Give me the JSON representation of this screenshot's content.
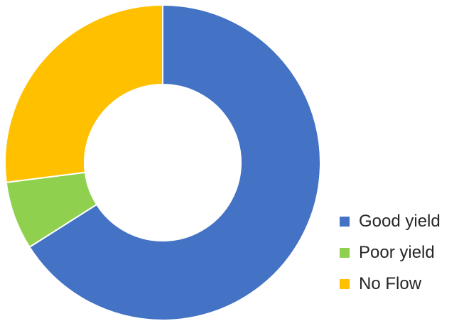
{
  "chart_data": {
    "type": "pie",
    "variant": "donut",
    "start_angle_deg": 0,
    "direction": "clockwise",
    "slices": [
      {
        "label": "Good yield",
        "value": 66,
        "color": "#4472C4"
      },
      {
        "label": "Poor yield",
        "value": 7,
        "color": "#8FD14F"
      },
      {
        "label": "No Flow",
        "value": 27,
        "color": "#FFC000"
      }
    ],
    "legend": {
      "position": "bottom-right"
    }
  }
}
